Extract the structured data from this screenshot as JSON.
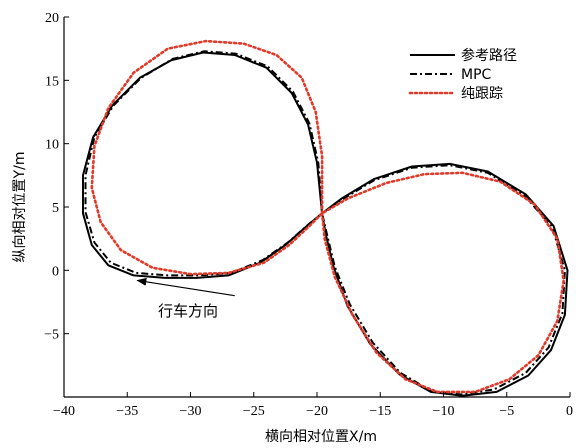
{
  "chart_data": {
    "type": "line",
    "title": "",
    "xlabel": "横向相对位置X/m",
    "ylabel": "纵向相对位置Y/m",
    "xlim": [
      -40,
      0
    ],
    "ylim": [
      -10,
      20
    ],
    "xticks": [
      -40,
      -35,
      -30,
      -25,
      -20,
      -15,
      -10,
      -5,
      0
    ],
    "xtick_labels": [
      "−40",
      "−35",
      "−30",
      "−25",
      "−20",
      "−15",
      "−10",
      "−5",
      "0"
    ],
    "yticks": [
      -5,
      0,
      5,
      10,
      15,
      20
    ],
    "ytick_labels": [
      "−5",
      "0",
      "5",
      "10",
      "15",
      "20"
    ],
    "grid": false,
    "legend_position": "top-right",
    "series": [
      {
        "name": "参考路径",
        "color": "#000000",
        "style": "solid",
        "x": [
          -19.6,
          -20.0,
          -20.7,
          -22.0,
          -24.0,
          -26.5,
          -29.0,
          -31.5,
          -34.0,
          -36.2,
          -37.7,
          -38.5,
          -38.5,
          -37.8,
          -36.5,
          -34.5,
          -32.0,
          -29.5,
          -27.0,
          -24.5,
          -22.5,
          -20.8,
          -19.6,
          -18.0,
          -15.5,
          -12.5,
          -9.5,
          -6.5,
          -3.5,
          -1.3,
          -0.2,
          -0.4,
          -1.5,
          -3.3,
          -5.8,
          -8.5,
          -11.0,
          -13.5,
          -15.8,
          -17.6,
          -18.7,
          -19.3,
          -19.6
        ],
        "y": [
          4.5,
          8.5,
          11.5,
          14.0,
          16.0,
          17.0,
          17.2,
          16.6,
          15.2,
          13.0,
          10.5,
          7.5,
          4.5,
          2.0,
          0.4,
          -0.4,
          -0.6,
          -0.6,
          -0.4,
          0.6,
          2.0,
          3.5,
          4.5,
          5.7,
          7.2,
          8.2,
          8.4,
          7.8,
          6.0,
          3.5,
          0.0,
          -3.5,
          -6.3,
          -8.3,
          -9.6,
          -9.9,
          -9.6,
          -8.2,
          -5.8,
          -2.8,
          0.3,
          2.8,
          4.5
        ]
      },
      {
        "name": "MPC",
        "color": "#000000",
        "style": "dashdot",
        "x": [
          -19.6,
          -19.9,
          -20.6,
          -21.9,
          -23.9,
          -26.4,
          -28.9,
          -31.4,
          -33.9,
          -36.1,
          -37.6,
          -38.3,
          -38.3,
          -37.6,
          -36.3,
          -34.3,
          -31.8,
          -29.3,
          -26.8,
          -24.3,
          -22.3,
          -20.7,
          -19.6,
          -18.0,
          -15.5,
          -12.5,
          -9.5,
          -6.5,
          -3.6,
          -1.4,
          -0.4,
          -0.6,
          -1.7,
          -3.5,
          -6.0,
          -8.6,
          -11.0,
          -13.4,
          -15.6,
          -17.4,
          -18.6,
          -19.2,
          -19.6
        ],
        "y": [
          4.5,
          8.5,
          11.6,
          14.1,
          16.1,
          17.1,
          17.3,
          16.7,
          15.2,
          13.0,
          10.5,
          7.5,
          4.6,
          2.2,
          0.6,
          -0.2,
          -0.4,
          -0.4,
          -0.2,
          0.8,
          2.2,
          3.6,
          4.5,
          5.6,
          7.1,
          8.1,
          8.3,
          7.7,
          5.9,
          3.4,
          0.0,
          -3.4,
          -6.1,
          -8.1,
          -9.4,
          -9.8,
          -9.5,
          -8.1,
          -5.7,
          -2.7,
          0.3,
          2.8,
          4.5
        ]
      },
      {
        "name": "纯跟踪",
        "color": "#e03a2a",
        "style": "dotted",
        "x": [
          -19.6,
          -19.6,
          -20.1,
          -21.2,
          -23.2,
          -25.8,
          -28.8,
          -31.8,
          -34.5,
          -36.5,
          -37.6,
          -37.8,
          -37.1,
          -35.5,
          -33.0,
          -30.0,
          -27.0,
          -24.2,
          -22.2,
          -20.6,
          -19.6,
          -17.5,
          -14.5,
          -11.5,
          -8.5,
          -5.5,
          -2.8,
          -1.0,
          -0.5,
          -1.0,
          -2.5,
          -4.8,
          -7.5,
          -10.5,
          -13.0,
          -15.3,
          -17.2,
          -18.6,
          -19.4,
          -19.6
        ],
        "y": [
          4.5,
          9.0,
          12.5,
          15.2,
          17.0,
          17.9,
          18.1,
          17.5,
          15.6,
          12.8,
          9.8,
          6.5,
          3.8,
          1.6,
          0.2,
          -0.3,
          -0.2,
          0.6,
          2.0,
          3.5,
          4.5,
          5.7,
          6.9,
          7.6,
          7.7,
          7.0,
          5.2,
          2.5,
          -0.8,
          -4.0,
          -6.7,
          -8.6,
          -9.6,
          -9.6,
          -8.6,
          -6.5,
          -3.5,
          -0.5,
          2.5,
          4.5
        ]
      }
    ],
    "annotations": [
      {
        "text": "行车方向",
        "x": -30.2,
        "y": -3.2,
        "arrow_from": [
          -26.5,
          -2.0
        ],
        "arrow_to": [
          -34.2,
          -0.8
        ]
      }
    ]
  }
}
